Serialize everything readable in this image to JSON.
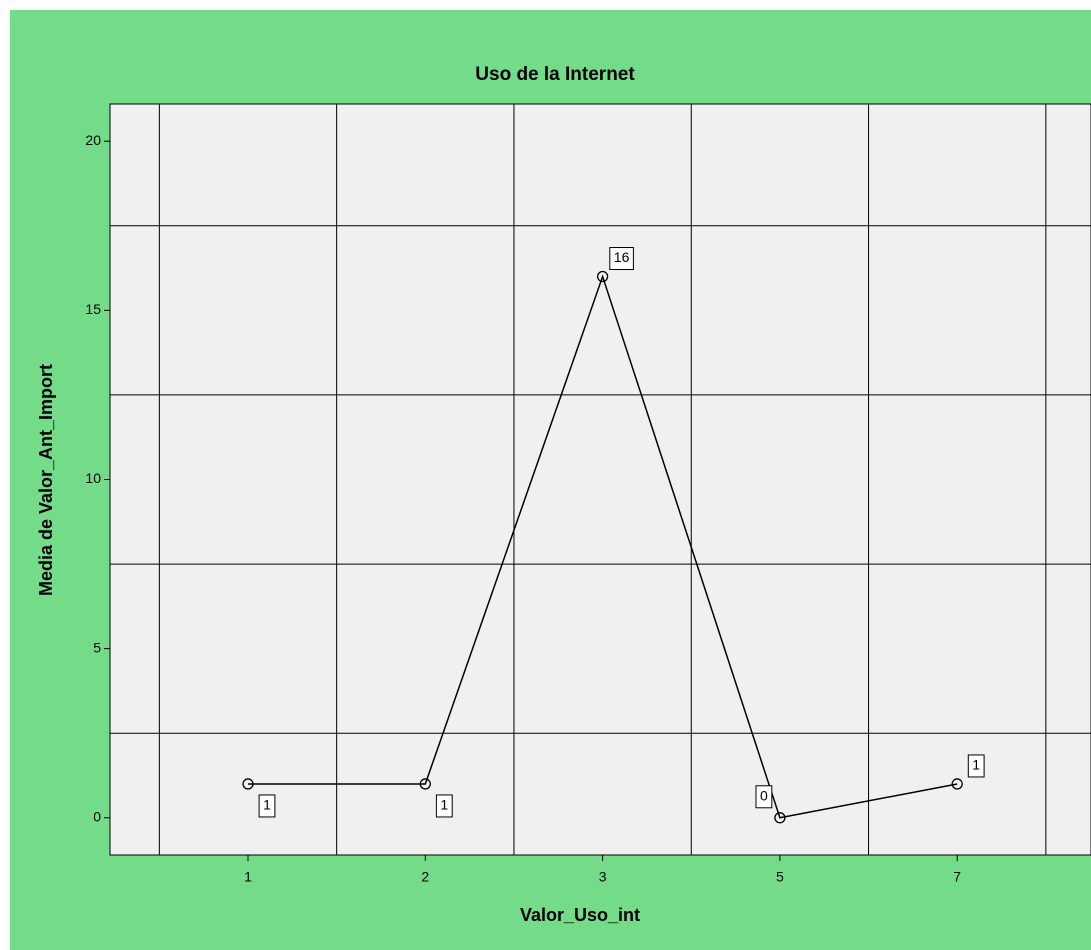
{
  "chart_data": {
    "type": "line",
    "title": "Uso de la Internet",
    "x_label": "Valor_Uso_int",
    "y_label": "Media de Valor_Ant_Import",
    "categories": [
      "1",
      "2",
      "3",
      "5",
      "7"
    ],
    "values": [
      1,
      1,
      16,
      0,
      1
    ],
    "color": "#000000",
    "ylim": [
      -1.1,
      21.1
    ],
    "yticks": [
      0,
      5,
      10,
      15,
      20
    ],
    "grid_lines": [
      2.5,
      7.5,
      12.5,
      17.5
    ],
    "grid": true
  }
}
